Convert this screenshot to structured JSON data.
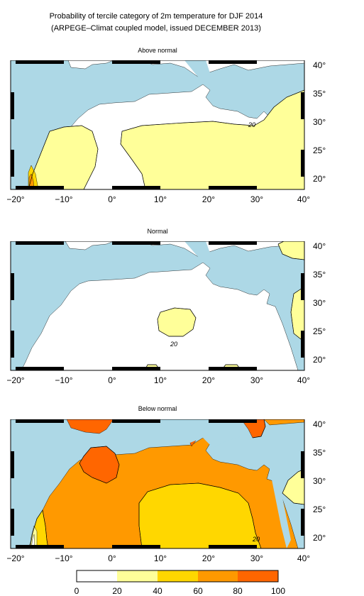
{
  "header": {
    "title_line1": "Probability of tercile category of 2m temperature for DJF 2014",
    "title_line2": "(ARPEGE–Climat coupled model, issued DECEMBER 2013)"
  },
  "axes": {
    "x_ticks": [
      "−20°",
      "−10°",
      "0°",
      "10°",
      "20°",
      "30°",
      "40°"
    ],
    "y_ticks": [
      "40°",
      "35°",
      "30°",
      "25°",
      "20°"
    ]
  },
  "colors": {
    "sea": "#add8e6",
    "c0_20": "#ffffff",
    "c20_40": "#ffff99",
    "c40_60": "#ffd700",
    "c60_80": "#ff9900",
    "c80_100": "#ff6600"
  },
  "panels": [
    {
      "title": "Above normal",
      "contour_labels": [
        "20"
      ]
    },
    {
      "title": "Normal",
      "contour_labels": [
        "20"
      ]
    },
    {
      "title": "Below normal",
      "contour_labels": [
        "20"
      ]
    }
  ],
  "colorbar": {
    "labels": [
      "0",
      "20",
      "40",
      "60",
      "80",
      "100"
    ]
  }
}
